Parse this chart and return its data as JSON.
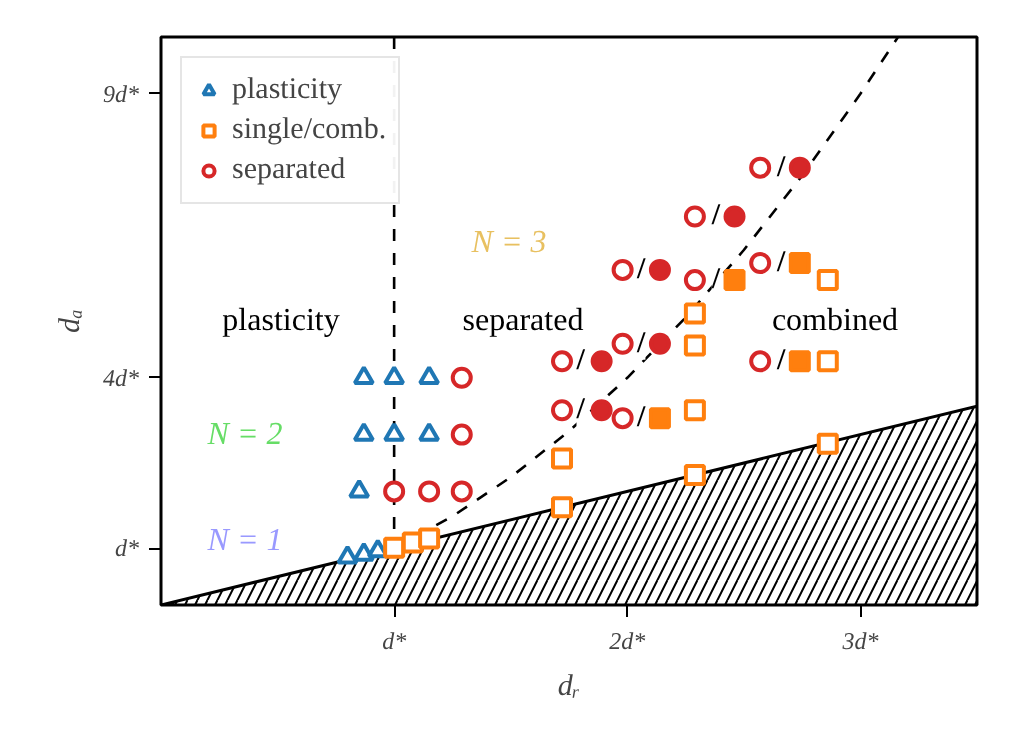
{
  "chart_data": {
    "type": "scatter",
    "xlabel": "dᵣ",
    "ylabel": "dₐ",
    "xlim": [
      0,
      3.5
    ],
    "ylim": [
      0,
      10
    ],
    "xticks": [
      {
        "value": 1,
        "label": "d*"
      },
      {
        "value": 2,
        "label": "2d*"
      },
      {
        "value": 3,
        "label": "3d*"
      }
    ],
    "yticks": [
      {
        "value": 1,
        "label": "d*"
      },
      {
        "value": 4,
        "label": "4d*"
      },
      {
        "value": 9,
        "label": "9d*"
      }
    ],
    "grid": false,
    "legend": "top left",
    "ref_lines": [
      {
        "axis": "x",
        "value": 1,
        "color": "#000000",
        "line_style": "dashed"
      }
    ],
    "series": [
      {
        "type": "area",
        "color": "#000000",
        "x": [
          0,
          3.5
        ],
        "values": [
          0,
          3.5
        ]
      },
      {
        "type": "line",
        "color": "#000000",
        "line_style": "dashed",
        "x": [
          1,
          1.25,
          1.5,
          1.75,
          2,
          2.25,
          2.5,
          2.75,
          3,
          3.16
        ],
        "values": [
          1,
          1.56,
          2.25,
          3.06,
          4,
          5.06,
          6.25,
          7.56,
          9,
          9.99
        ]
      },
      {
        "name": "plasticity",
        "marker": "triangle",
        "color": "#1f77b4",
        "x": [
          0.87,
          1.0,
          1.15,
          0.87,
          1.0,
          1.15,
          0.85,
          0.8,
          0.87,
          0.93
        ],
        "values": [
          4,
          4,
          4,
          3,
          3,
          3,
          2,
          0.84,
          0.89,
          0.95
        ]
      },
      {
        "name": "single/comb.",
        "marker": "square",
        "color": "#ff7f0e",
        "x": [
          1.0,
          1.08,
          1.15,
          1.72,
          1.72,
          2.29,
          2.29,
          2.29,
          2.29,
          2.86,
          2.86,
          2.86
        ],
        "values": [
          1.01,
          1.1,
          1.17,
          2.58,
          1.72,
          5.13,
          4.57,
          3.43,
          2.29,
          5.72,
          4.29,
          2.84
        ]
      },
      {
        "name": "separated",
        "marker": "circle",
        "color": "#d62728",
        "x": [
          1.29,
          1.29,
          1.0,
          1.15,
          1.29,
          1.72,
          1.72,
          1.98,
          1.98,
          1.98,
          2.29,
          2.29,
          2.57,
          2.57,
          2.57
        ],
        "values": [
          4,
          3,
          2,
          2,
          2,
          4.29,
          3.43,
          5.9,
          4.6,
          3.29,
          6.84,
          5.72,
          7.7,
          6.02,
          4.29
        ]
      },
      {
        "marker": "circle",
        "color": "#d62728",
        "x": [
          1.89,
          1.89,
          2.14,
          2.14,
          2.46,
          2.74
        ],
        "values": [
          4.29,
          3.43,
          5.9,
          4.6,
          6.84,
          7.7
        ]
      },
      {
        "marker": "square",
        "color": "#ff7f0e",
        "x": [
          2.14,
          2.46,
          2.74,
          2.74
        ],
        "values": [
          3.29,
          5.72,
          6.02,
          4.29
        ]
      }
    ],
    "annotations": [
      "plasticity",
      "separated",
      "combined",
      "N = 3",
      "N = 2",
      "N = 1",
      {
        "text": "/",
        "x": 1.8,
        "y": 4.29
      },
      {
        "text": "/",
        "x": 1.8,
        "y": 3.43
      },
      {
        "text": "/",
        "x": 2.06,
        "y": 5.9
      },
      {
        "text": "/",
        "x": 2.06,
        "y": 4.6
      },
      {
        "text": "/",
        "x": 2.06,
        "y": 3.29
      },
      {
        "text": "/",
        "x": 2.38,
        "y": 6.84
      },
      {
        "text": "/",
        "x": 2.38,
        "y": 5.72
      },
      {
        "text": "/",
        "x": 2.66,
        "y": 7.7
      },
      {
        "text": "/",
        "x": 2.66,
        "y": 6.02
      },
      {
        "text": "/",
        "x": 2.66,
        "y": 4.29
      }
    ]
  }
}
